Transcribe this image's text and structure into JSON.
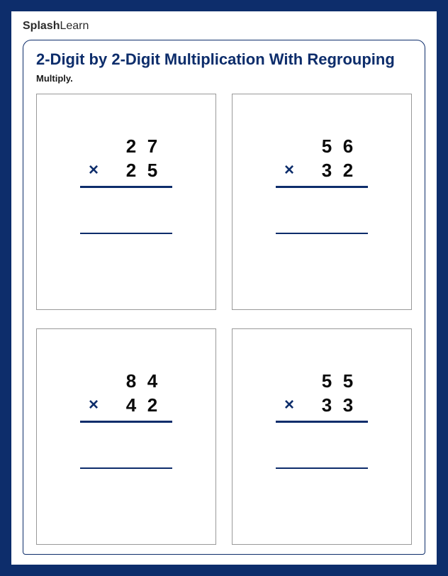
{
  "logo": {
    "part1": "Splash",
    "part2": "Learn"
  },
  "worksheet": {
    "title": "2-Digit by 2-Digit Multiplication With Regrouping",
    "instruction": "Multiply.",
    "operator_symbol": "×",
    "colors": {
      "frame": "#0d2d6b",
      "page_bg": "#ffffff",
      "border": "#0d2d6b",
      "text_dark": "#0a0a0a",
      "title_color": "#0d2d6b"
    },
    "problems": [
      {
        "top_digit1": "2",
        "top_digit2": "7",
        "bottom_digit1": "2",
        "bottom_digit2": "5"
      },
      {
        "top_digit1": "5",
        "top_digit2": "6",
        "bottom_digit1": "3",
        "bottom_digit2": "2"
      },
      {
        "top_digit1": "8",
        "top_digit2": "4",
        "bottom_digit1": "4",
        "bottom_digit2": "2"
      },
      {
        "top_digit1": "5",
        "top_digit2": "5",
        "bottom_digit1": "3",
        "bottom_digit2": "3"
      }
    ]
  }
}
